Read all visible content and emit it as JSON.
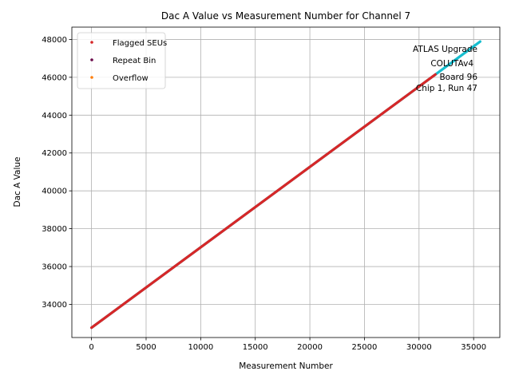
{
  "chart_data": {
    "type": "scatter",
    "title": "Dac A Value vs Measurement Number for Channel 7",
    "xlabel": "Measurement Number",
    "ylabel": "Dac A Value",
    "xlim": [
      -1800,
      37400
    ],
    "ylim": [
      32250,
      48650
    ],
    "xticks": [
      0,
      5000,
      10000,
      15000,
      20000,
      25000,
      30000,
      35000
    ],
    "yticks": [
      34000,
      36000,
      38000,
      40000,
      42000,
      44000,
      46000,
      48000
    ],
    "grid": true,
    "legend_position": "top-left",
    "series": [
      {
        "name": "",
        "color": "#17becf",
        "x": [
          0,
          35600
        ],
        "y": [
          32768,
          47890
        ]
      },
      {
        "name": "",
        "color": "#d62728",
        "x": [
          0,
          31500
        ],
        "y": [
          32768,
          46150
        ]
      }
    ],
    "legend": [
      {
        "label": "Flagged SEUs",
        "color": "#d62728"
      },
      {
        "label": "Repeat Bin",
        "color": "#6a0a4a"
      },
      {
        "label": "Overflow",
        "color": "#ff7f0e"
      }
    ],
    "annotation": [
      "ATLAS Upgrade",
      "COLUTAv4",
      "Board 96",
      "Chip 1, Run 47"
    ]
  }
}
